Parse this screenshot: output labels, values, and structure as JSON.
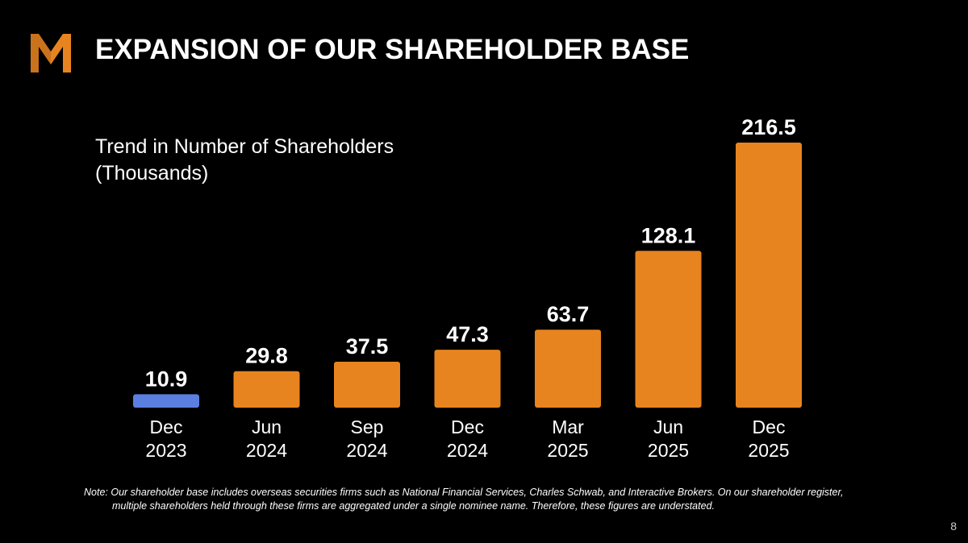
{
  "slide": {
    "title": "EXPANSION OF OUR SHAREHOLDER BASE",
    "page_number": "8",
    "footnote_line1": "Note: Our shareholder base includes overseas securities firms such as National Financial Services, Charles Schwab, and Interactive Brokers. On our shareholder register,",
    "footnote_line2": "multiple shareholders held through these firms are aggregated under a single nominee name. Therefore, these figures are understated.",
    "logo_icon": "m-logo-icon"
  },
  "chart_data": {
    "type": "bar",
    "title": "Trend in Number of Shareholders (Thousands)",
    "title_line1": "Trend in Number of Shareholders",
    "title_line2": "(Thousands)",
    "categories": [
      [
        "Dec",
        "2023"
      ],
      [
        "Jun",
        "2024"
      ],
      [
        "Sep",
        "2024"
      ],
      [
        "Dec",
        "2024"
      ],
      [
        "Mar",
        "2025"
      ],
      [
        "Jun",
        "2025"
      ],
      [
        "Dec",
        "2025"
      ]
    ],
    "values": [
      10.9,
      29.8,
      37.5,
      47.3,
      63.7,
      128.1,
      216.5
    ],
    "value_labels": [
      "10.9",
      "29.8",
      "37.5",
      "47.3",
      "63.7",
      "128.1",
      "216.5"
    ],
    "bar_colors": [
      "#5b7fe0",
      "#e8841f",
      "#e8841f",
      "#e8841f",
      "#e8841f",
      "#e8841f",
      "#e8841f"
    ],
    "ylim": [
      0,
      216.5
    ],
    "grid": false,
    "legend": "none"
  }
}
